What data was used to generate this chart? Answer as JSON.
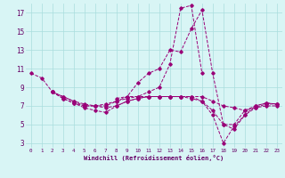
{
  "xlabel": "Windchill (Refroidissement éolien,°C)",
  "bg_color": "#d8f5f5",
  "grid_color": "#aadddd",
  "line_color": "#990077",
  "xlim": [
    -0.5,
    23.5
  ],
  "ylim": [
    2.5,
    18
  ],
  "xticks": [
    0,
    1,
    2,
    3,
    4,
    5,
    6,
    7,
    8,
    9,
    10,
    11,
    12,
    13,
    14,
    15,
    16,
    17,
    18,
    19,
    20,
    21,
    22,
    23
  ],
  "yticks": [
    3,
    5,
    7,
    9,
    11,
    13,
    15,
    17
  ],
  "series": [
    {
      "x": [
        0,
        1,
        2,
        3,
        4,
        5,
        6,
        7,
        8,
        9,
        10,
        11,
        12,
        13,
        14,
        15,
        16,
        17,
        18,
        19,
        20,
        21,
        22,
        23
      ],
      "y": [
        10.5,
        10.0,
        8.5,
        8.0,
        7.5,
        7.2,
        7.0,
        7.0,
        7.5,
        8.0,
        9.5,
        10.5,
        11.0,
        13.0,
        12.8,
        15.3,
        17.3,
        10.5,
        5.0,
        5.0,
        6.5,
        7.0,
        7.3,
        7.2
      ]
    },
    {
      "x": [
        2,
        3,
        4,
        5,
        6,
        7,
        8,
        9,
        10,
        11,
        12,
        13,
        14,
        15,
        16,
        17,
        18,
        19,
        20,
        21,
        22,
        23
      ],
      "y": [
        8.5,
        8.0,
        7.5,
        7.0,
        7.0,
        7.2,
        7.5,
        7.8,
        8.0,
        8.0,
        8.0,
        8.0,
        8.0,
        8.0,
        8.0,
        7.5,
        7.0,
        6.8,
        6.5,
        6.8,
        7.2,
        7.2
      ]
    },
    {
      "x": [
        2,
        3,
        4,
        5,
        6,
        7,
        8,
        9,
        10,
        11,
        12,
        13,
        14,
        15,
        16,
        17,
        18,
        19,
        20,
        21,
        22,
        23
      ],
      "y": [
        8.5,
        7.8,
        7.3,
        7.0,
        7.0,
        6.8,
        7.0,
        7.5,
        7.8,
        8.0,
        8.0,
        8.0,
        8.0,
        7.8,
        7.5,
        6.5,
        5.0,
        4.5,
        6.0,
        7.0,
        7.3,
        7.2
      ]
    },
    {
      "x": [
        2,
        3,
        4,
        5,
        6,
        7,
        8,
        9,
        10,
        11,
        12,
        13,
        14,
        15,
        16,
        17,
        18,
        19,
        20,
        21,
        22,
        23
      ],
      "y": [
        8.5,
        7.8,
        7.3,
        6.8,
        6.5,
        6.3,
        7.0,
        7.5,
        7.8,
        8.0,
        8.0,
        8.0,
        8.0,
        8.0,
        7.5,
        6.0,
        3.0,
        4.8,
        6.0,
        6.8,
        7.0,
        7.0
      ]
    },
    {
      "x": [
        8,
        9,
        10,
        11,
        12,
        13,
        14,
        15,
        16
      ],
      "y": [
        7.8,
        8.0,
        8.0,
        8.5,
        9.0,
        11.5,
        17.5,
        17.8,
        10.5
      ]
    }
  ]
}
